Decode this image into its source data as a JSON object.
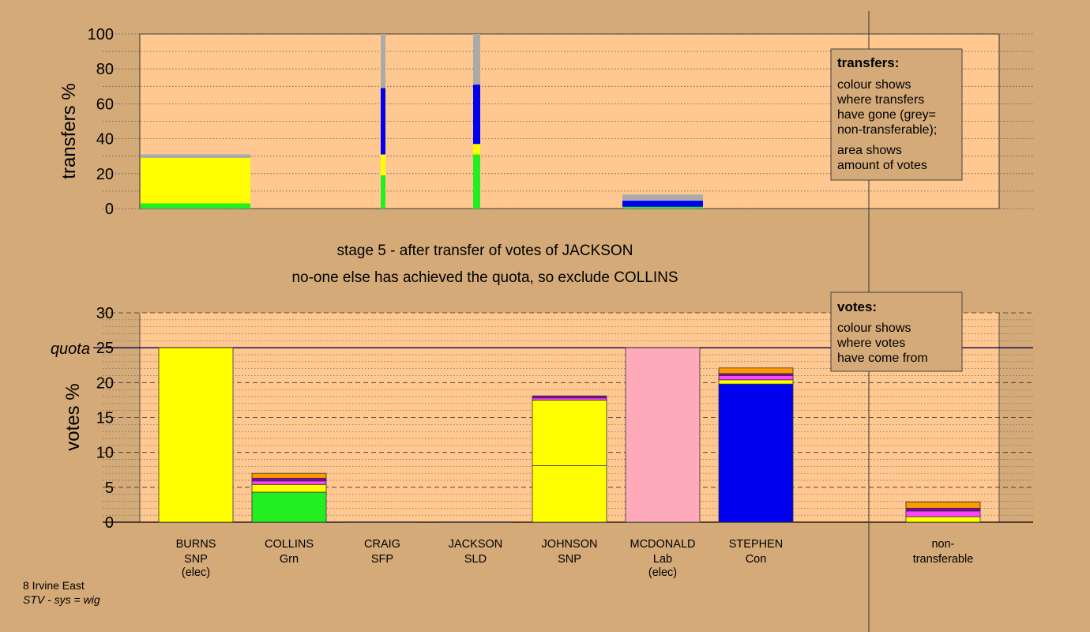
{
  "chart_data": [
    {
      "type": "bar",
      "stacked": true,
      "ylabel": "transfers %",
      "ylim": [
        0,
        100
      ],
      "yticks": [
        "0",
        "20",
        "40",
        "60",
        "80",
        "100"
      ],
      "grid": "dotted horizontal",
      "colors": {
        "green": "#22ee22",
        "yellow": "#ffff00",
        "blue": "#0000ee",
        "grey": "#aaaaaa"
      },
      "bars": [
        {
          "recipient": "BURNS",
          "width": "wide",
          "segments": [
            {
              "color": "green",
              "value": 3
            },
            {
              "color": "yellow",
              "value": 26
            },
            {
              "color": "grey",
              "value": 2
            }
          ]
        },
        {
          "recipient": "COLLINS-column (right edge)",
          "width": "thin",
          "segments": [
            {
              "color": "green",
              "value": 19
            },
            {
              "color": "yellow",
              "value": 12
            },
            {
              "color": "blue",
              "value": 38
            },
            {
              "color": "grey",
              "value": 31
            }
          ]
        },
        {
          "recipient": "JACKSON-column (right edge)",
          "width": "thin",
          "segments": [
            {
              "color": "green",
              "value": 31
            },
            {
              "color": "yellow",
              "value": 6
            },
            {
              "color": "blue",
              "value": 34
            },
            {
              "color": "grey",
              "value": 29
            }
          ]
        },
        {
          "recipient": "MCDONALD",
          "width": "medium",
          "segments": [
            {
              "color": "green",
              "value": 1
            },
            {
              "color": "blue",
              "value": 3.5
            },
            {
              "color": "grey",
              "value": 3.5
            }
          ]
        }
      ],
      "legend": {
        "title": "transfers:",
        "lines": [
          "colour shows",
          "where transfers",
          "have gone (grey=",
          "non-transferable);",
          "area shows",
          "amount of votes"
        ]
      }
    },
    {
      "type": "bar",
      "stacked": true,
      "ylabel": "votes %",
      "ylim": [
        0,
        30
      ],
      "yticks": [
        "0",
        "5",
        "10",
        "15",
        "20",
        "25",
        "30"
      ],
      "quota": {
        "label": "quota",
        "value": 25
      },
      "grid": "dashed every 5, dotted every 1",
      "colors": {
        "yellow": "#ffff00",
        "green": "#22ee22",
        "pink": "#ffaabb",
        "blue": "#0000ee",
        "purple": "#8800aa",
        "magenta": "#ff44ff",
        "orange": "#ff9900",
        "peach": "#ffcc88"
      },
      "categories": [
        {
          "name": "BURNS",
          "party": "SNP",
          "note": "(elec)"
        },
        {
          "name": "COLLINS",
          "party": "Grn",
          "note": ""
        },
        {
          "name": "CRAIG",
          "party": "SFP",
          "note": ""
        },
        {
          "name": "JACKSON",
          "party": "SLD",
          "note": ""
        },
        {
          "name": "JOHNSON",
          "party": "SNP",
          "note": ""
        },
        {
          "name": "MCDONALD",
          "party": "Lab",
          "note": "(elec)"
        },
        {
          "name": "STEPHEN",
          "party": "Con",
          "note": ""
        },
        {
          "name": "non-",
          "party": "transferable",
          "note": ""
        }
      ],
      "stacks": [
        [
          {
            "color": "yellow",
            "value": 25
          }
        ],
        [
          {
            "color": "green",
            "value": 4.3
          },
          {
            "color": "yellow",
            "value": 1.1
          },
          {
            "color": "magenta",
            "value": 0.5
          },
          {
            "color": "purple",
            "value": 0.4
          },
          {
            "color": "orange",
            "value": 0.7
          }
        ],
        [
          {
            "color": "peach",
            "value": 0.05
          }
        ],
        [
          {
            "color": "peach",
            "value": 0.05
          }
        ],
        [
          {
            "color": "yellow",
            "value": 8.1
          },
          {
            "color": "yellow",
            "value": 9.4
          },
          {
            "color": "magenta",
            "value": 0.3
          },
          {
            "color": "purple",
            "value": 0.3
          }
        ],
        [
          {
            "color": "pink",
            "value": 25
          }
        ],
        [
          {
            "color": "blue",
            "value": 19.8
          },
          {
            "color": "yellow",
            "value": 0.6
          },
          {
            "color": "magenta",
            "value": 0.6
          },
          {
            "color": "purple",
            "value": 0.3
          },
          {
            "color": "orange",
            "value": 0.8
          }
        ],
        [
          {
            "color": "yellow",
            "value": 0.8
          },
          {
            "color": "magenta",
            "value": 0.8
          },
          {
            "color": "purple",
            "value": 0.4
          },
          {
            "color": "orange",
            "value": 0.9
          }
        ]
      ],
      "legend": {
        "title": "votes:",
        "lines": [
          "colour shows",
          "where votes",
          "have come from"
        ]
      }
    }
  ],
  "titles": {
    "line1": "stage 5 - after transfer of votes of JACKSON",
    "line2": "no-one else has achieved the quota, so exclude COLLINS"
  },
  "footer": {
    "ward": "8 Irvine East",
    "system": "STV - sys = wig"
  }
}
